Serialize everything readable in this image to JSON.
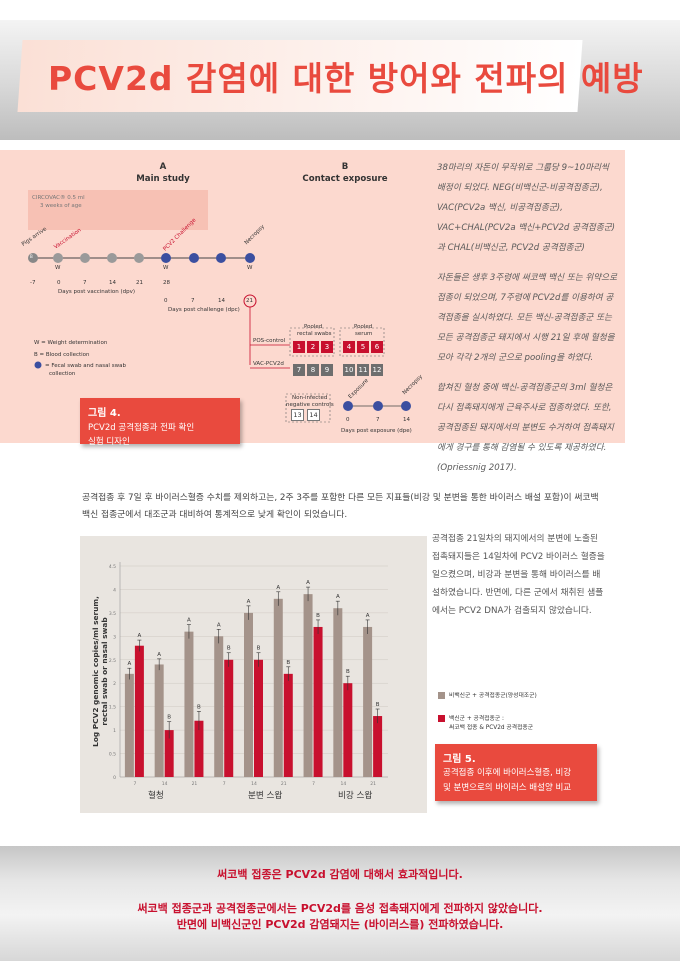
{
  "title": "PCV2d 감염에 대한 방어와 전파의 예방",
  "diagram": {
    "a_letter": "A",
    "a_title": "Main study",
    "b_letter": "B",
    "b_title": "Contact exposure",
    "circovac": "CIRCOVAC® 0.5 ml",
    "circovac_age": "3 weeks of age",
    "pigs_arrive": "Pigs arrive",
    "vaccination": "Vaccination",
    "challenge": "PCV2 Challenge",
    "necropsy": "Necropsy",
    "exposure": "Exposure",
    "necropsy2": "Necropsy",
    "b_marker": "B",
    "w_marker": "W",
    "dpv_ticks": [
      "-7",
      "0",
      "7",
      "14",
      "21",
      "28"
    ],
    "dpv_label": "Days post vaccination (dpv)",
    "dpc_ticks": [
      "0",
      "7",
      "14"
    ],
    "dpc_circle": "21",
    "dpc_label": "Days post challenge (dpc)",
    "legend_w": "W = Weight determination",
    "legend_b": "B = Blood collection",
    "legend_fecal_1": "= Fecal swab and nasal swab",
    "legend_fecal_2": "collection",
    "pos_control": "POS-control",
    "vac_pcv2d": "VAC-PCV2d",
    "pooled_rectal_1": "Pooled",
    "pooled_rectal_2": "rectal swabs",
    "pooled_serum_1": "Pooled",
    "pooled_serum_2": "serum",
    "boxes_top_left": [
      "1",
      "2",
      "3"
    ],
    "boxes_top_right": [
      "4",
      "5",
      "6"
    ],
    "boxes_bot_left": [
      "7",
      "8",
      "9"
    ],
    "boxes_bot_right": [
      "10",
      "11",
      "12"
    ],
    "noninfected_1": "Non-infected",
    "noninfected_2": "negative controls",
    "boxes_neg": [
      "13",
      "14"
    ],
    "dpe_ticks": [
      "0",
      "7",
      "14"
    ],
    "dpe_label": "Days post exposure (dpe)"
  },
  "fig4": {
    "label": "그림 4.",
    "caption_1": "PCV2d 공격접종과 전파 확인",
    "caption_2": "실험 디자인"
  },
  "right_text": {
    "p1": "38마리의 자돈이 무작위로 그룹당 9~10마리씩 배정이 되었다. NEG(비백신군-비공격접종군), VAC(PCV2a 백신, 비공격접종군), VAC+CHAL(PCV2a 백신+PCV2d 공격접종군)과 CHAL(비백신군, PCV2d 공격접종군)",
    "p2": "자돈들은 생후 3주령에 써코백 백신 또는 위약으로 접종이 되었으며, 7주령에 PCV2d를 이용하여 공격접종을 실시하였다. 모든 백신-공격접종군 또는 모든 공격접종군 돼지에서 시행 21일 후에 혈청을 모아 각각 2개의 군으로 pooling을 하였다.",
    "p3": "합쳐진 혈청 중에 백신-공격접종군의 3ml 혈청은 다시 접촉돼지에게 근육주사로 접종하였다. 또한, 공격접종된 돼지에서의 분변도 수거하여 접촉돼지에게 경구를 통해 감염될 수 있도록 제공하였다. (Opriessnig 2017)."
  },
  "body_text": "공격접종 후 7일 후 바이러스혈증 수치를 제외하고는, 2주 3주를 포함한 다른 모든 지표들(비강 및 분변을 통한 바이러스 배설 포함)이 써코백 백신 접종군에서 대조군과 대비하여 통계적으로 낮게 확인이 되었습니다.",
  "right_col": "공격접종 21일차의 돼지에서의 분변에 노출된 접촉돼지들은 14일차에 PCV2 바이러스 혈증을 일으켰으며, 비강과 분변을 통해 바이러스를 배설하였습니다. 반면에, 다른 군에서 채취된 샘플에서는 PCV2 DNA가 검출되지 않았습니다.",
  "chart_data": {
    "type": "bar",
    "ylabel": "Log PCV2 genomic copies/ml serum, rectal swab or nasal swab",
    "ylim": [
      0,
      4.5
    ],
    "yticks": [
      "0",
      "0.5",
      "1",
      "1.5",
      "2",
      "2.5",
      "3",
      "3.5",
      "4",
      "4.5"
    ],
    "groups": [
      "혈청",
      "분변 스왑",
      "비강 스왑"
    ],
    "categories": [
      "7",
      "14",
      "21",
      "7",
      "14",
      "21",
      "7",
      "14",
      "21"
    ],
    "series": [
      {
        "name": "비백신군 + 공격접종군(양성대조군)",
        "color": "#a4938a",
        "values": [
          2.2,
          2.4,
          3.1,
          3.0,
          3.5,
          3.8,
          3.9,
          3.6,
          3.2
        ],
        "errors": [
          0.12,
          0.12,
          0.15,
          0.15,
          0.15,
          0.15,
          0.15,
          0.15,
          0.15
        ],
        "letters": [
          "A",
          "A",
          "A",
          "A",
          "A",
          "A",
          "A",
          "A",
          "A"
        ]
      },
      {
        "name": "백신군 + 공격접종군 : 써코백 접종 & PCV2d 공격접종군",
        "color": "#c8102e",
        "values": [
          2.8,
          1.0,
          1.2,
          2.5,
          2.5,
          2.2,
          3.2,
          2.0,
          1.3
        ],
        "errors": [
          0.12,
          0.18,
          0.2,
          0.15,
          0.15,
          0.15,
          0.15,
          0.15,
          0.15
        ],
        "letters": [
          "A",
          "B",
          "B",
          "B",
          "B",
          "B",
          "B",
          "B",
          "B"
        ]
      }
    ],
    "legend_1": "비백신군 + 공격접종군(양성대조군)",
    "legend_2a": "백신군 + 공격접종군 :",
    "legend_2b": "써코백 접종 & PCV2d 공격접종군"
  },
  "fig5": {
    "label": "그림 5.",
    "caption_1": "공격접종 이후에 바이러스혈증, 비강",
    "caption_2": "및 분변으로의 바이러스 배설양 비교"
  },
  "footer": {
    "line1": "써코백 접종은 PCV2d 감염에 대해서 효과적입니다.",
    "line2": "써코백 접종군과 공격접종군에서는 PCV2d를 음성 접촉돼지에게 전파하지 않았습니다.",
    "line3": "반면에 비백신군인 PCV2d 감염돼지는 (바이러스를) 전파하였습니다."
  }
}
